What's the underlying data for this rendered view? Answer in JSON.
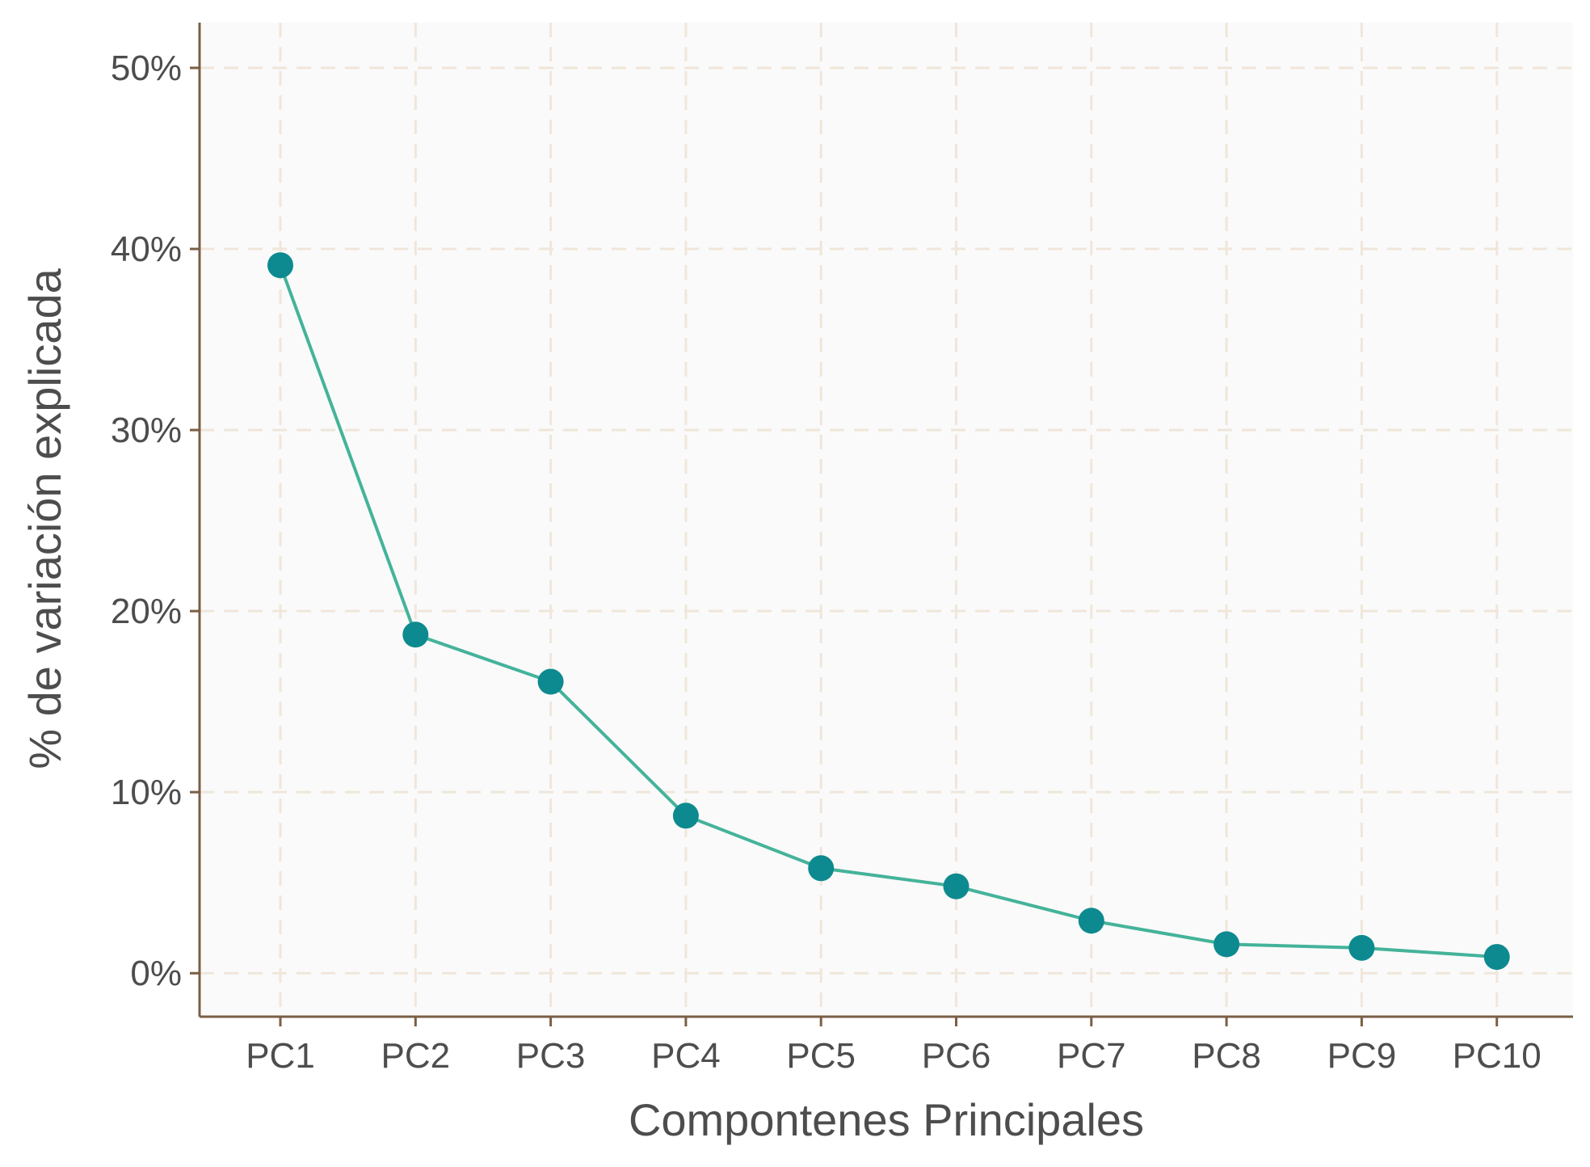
{
  "chart_data": {
    "type": "line",
    "categories": [
      "PC1",
      "PC2",
      "PC3",
      "PC4",
      "PC5",
      "PC6",
      "PC7",
      "PC8",
      "PC9",
      "PC10"
    ],
    "values": [
      39.1,
      18.7,
      16.1,
      8.7,
      5.8,
      4.8,
      2.9,
      1.6,
      1.4,
      0.9
    ],
    "xlabel": "Compontenes Principales",
    "ylabel": "% de variación explicada",
    "ylim": [
      -2.4,
      52.5
    ],
    "yticks": [
      0,
      10,
      20,
      30,
      40,
      50
    ],
    "ytick_labels": [
      "0%",
      "10%",
      "20%",
      "30%",
      "40%",
      "50%"
    ],
    "grid": true,
    "grid_style": "dashed",
    "colors": {
      "panel_background": "#fafafa",
      "grid": "#f0e6da",
      "axis_line": "#7a5f45",
      "line": "#44b39a",
      "point": "#0d8a8f",
      "text": "#4d4d4d"
    }
  }
}
